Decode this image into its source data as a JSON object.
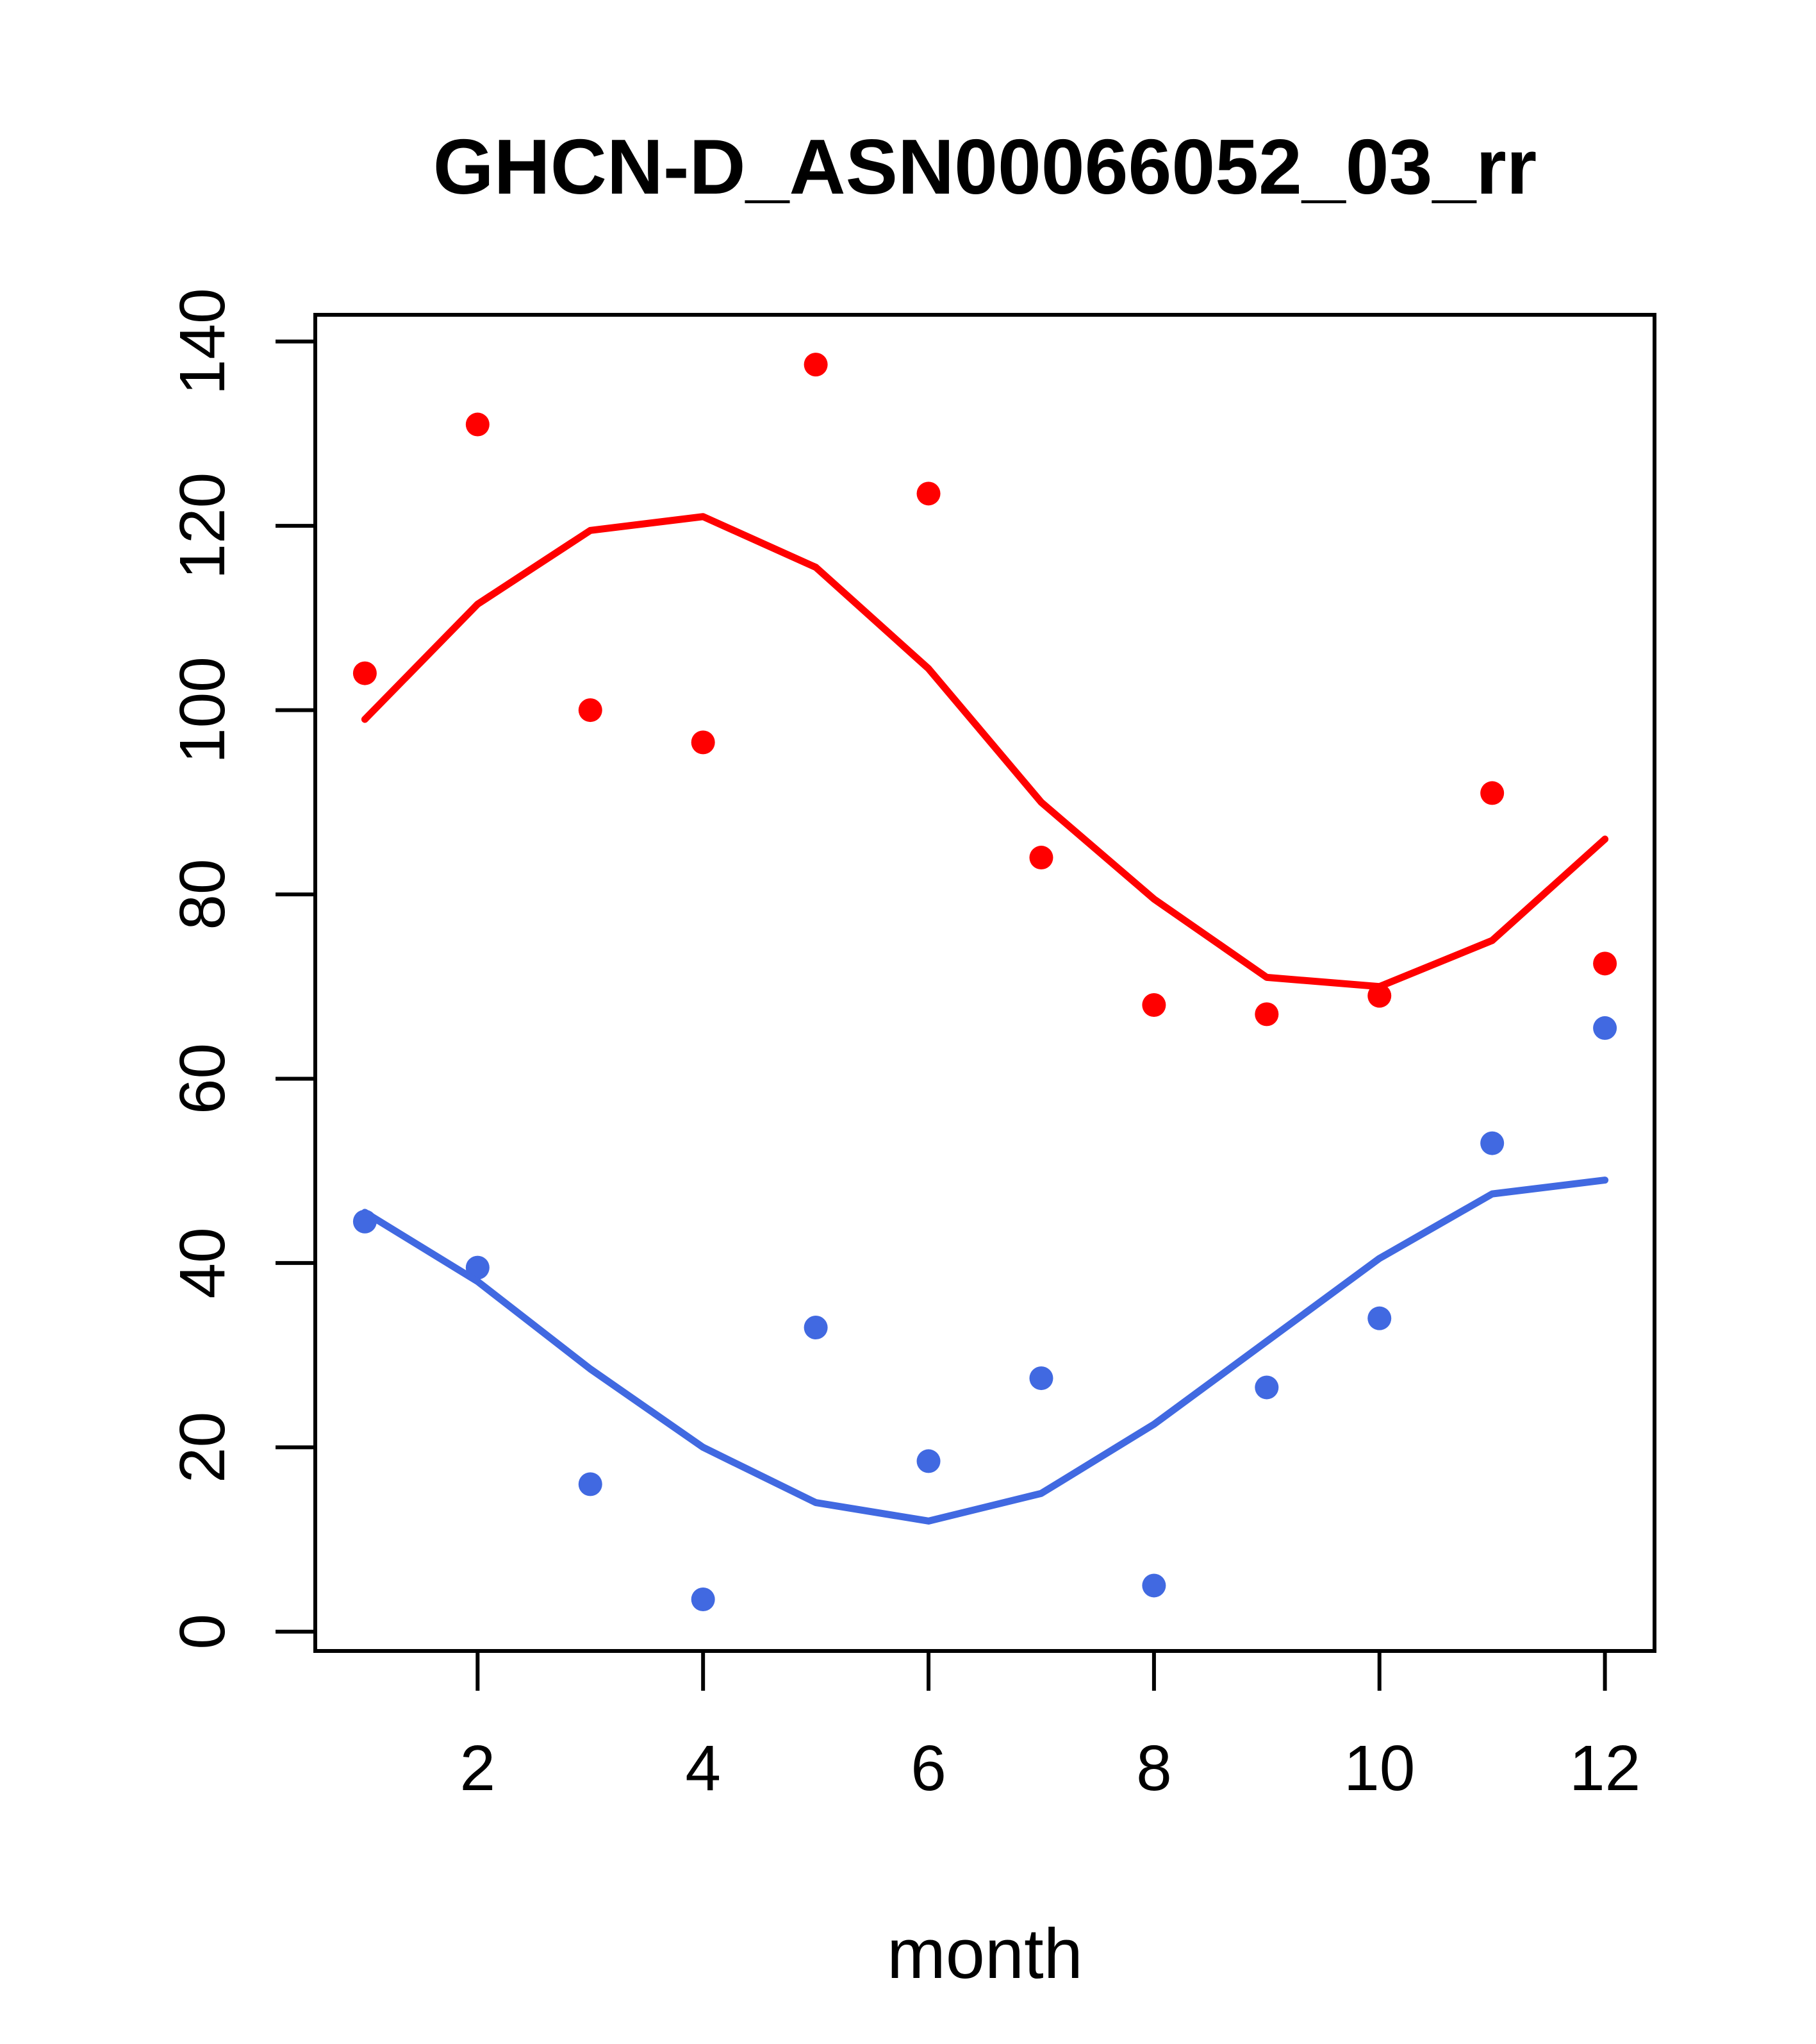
{
  "figure": {
    "title": "GHCN-D_ASN00066052_03_rr",
    "xlabel": "month"
  },
  "chart_data": {
    "type": "scatter",
    "title": "GHCN-D_ASN00066052_03_rr",
    "xlabel": "month",
    "ylabel": "",
    "x": [
      1,
      2,
      3,
      4,
      5,
      6,
      7,
      8,
      9,
      10,
      11,
      12
    ],
    "x_ticks": [
      2,
      4,
      6,
      8,
      10,
      12
    ],
    "y_ticks": [
      0,
      20,
      40,
      60,
      80,
      100,
      120,
      140
    ],
    "xlim": [
      0.56,
      12.44
    ],
    "ylim": [
      -2.1,
      142.9
    ],
    "grid": false,
    "legend": "none",
    "colors": {
      "red": "#FF0000",
      "blue": "#4169E1",
      "axis": "#000000",
      "background": "#ffffff"
    },
    "series": [
      {
        "name": "red-monthly-points",
        "kind": "points",
        "color_key": "red",
        "values": [
          104,
          131,
          100,
          96.5,
          137.5,
          123.5,
          84,
          68,
          67,
          69,
          91,
          72.5
        ]
      },
      {
        "name": "blue-monthly-points",
        "kind": "points",
        "color_key": "blue",
        "values": [
          44.5,
          39.5,
          16,
          3.5,
          33,
          18.5,
          27.5,
          5,
          26.5,
          34,
          53,
          65.5
        ]
      },
      {
        "name": "red-trend-line",
        "kind": "line",
        "color_key": "red",
        "values": [
          99,
          111.5,
          119.5,
          121,
          115.5,
          104.5,
          90,
          79.5,
          71,
          70,
          75,
          86
        ]
      },
      {
        "name": "blue-trend-line",
        "kind": "line",
        "color_key": "blue",
        "values": [
          45.5,
          38,
          28.5,
          20,
          14,
          12,
          15,
          22.5,
          31.5,
          40.5,
          47.5,
          49
        ]
      }
    ]
  }
}
